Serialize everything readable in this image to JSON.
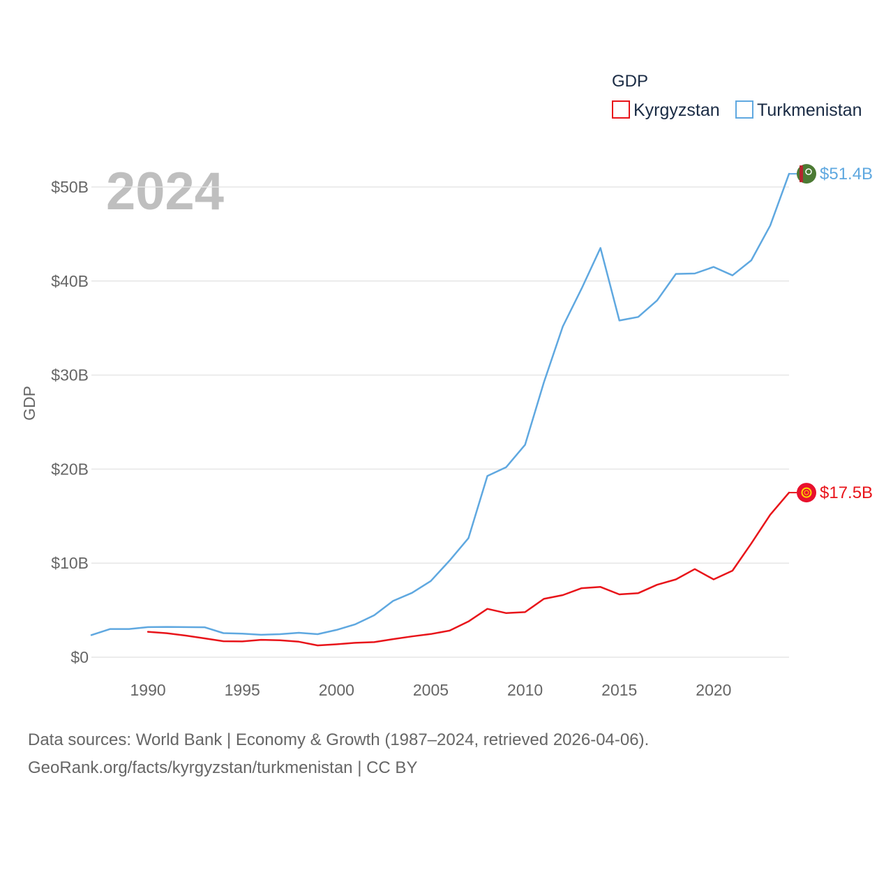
{
  "chart_data": {
    "type": "line",
    "title": "GDP",
    "year_watermark": "2024",
    "xlabel": "",
    "ylabel": "GDP",
    "xlim": [
      1987,
      2024
    ],
    "ylim": [
      0,
      50
    ],
    "x_ticks": [
      {
        "value": 1990,
        "label": "1990"
      },
      {
        "value": 1995,
        "label": "1995"
      },
      {
        "value": 2000,
        "label": "2000"
      },
      {
        "value": 2005,
        "label": "2005"
      },
      {
        "value": 2010,
        "label": "2010"
      },
      {
        "value": 2015,
        "label": "2015"
      },
      {
        "value": 2020,
        "label": "2020"
      }
    ],
    "y_ticks": [
      {
        "value": 0,
        "label": "$0"
      },
      {
        "value": 10,
        "label": "$10B"
      },
      {
        "value": 20,
        "label": "$20B"
      },
      {
        "value": 30,
        "label": "$30B"
      },
      {
        "value": 40,
        "label": "$40B"
      },
      {
        "value": 50,
        "label": "$50B"
      }
    ],
    "grid": true,
    "legend": {
      "title": "GDP",
      "position": "top-right"
    },
    "series": [
      {
        "name": "Kyrgyzstan",
        "color": "#e8141a",
        "end_label": "$17.5B",
        "flag": "kyrgyzstan-flag",
        "x": [
          1990,
          1991,
          1992,
          1993,
          1994,
          1995,
          1996,
          1997,
          1998,
          1999,
          2000,
          2001,
          2002,
          2003,
          2004,
          2005,
          2006,
          2007,
          2008,
          2009,
          2010,
          2011,
          2012,
          2013,
          2014,
          2015,
          2016,
          2017,
          2018,
          2019,
          2020,
          2021,
          2022,
          2023,
          2024
        ],
        "values": [
          2.7,
          2.55,
          2.3,
          2.0,
          1.7,
          1.68,
          1.85,
          1.8,
          1.65,
          1.25,
          1.37,
          1.53,
          1.6,
          1.92,
          2.21,
          2.46,
          2.83,
          3.8,
          5.14,
          4.69,
          4.79,
          6.2,
          6.6,
          7.34,
          7.47,
          6.68,
          6.81,
          7.7,
          8.27,
          9.37,
          8.27,
          9.2,
          12.1,
          15.15,
          17.5
        ]
      },
      {
        "name": "Turkmenistan",
        "color": "#5fa8e0",
        "end_label": "$51.4B",
        "flag": "turkmenistan-flag",
        "x": [
          1987,
          1988,
          1989,
          1990,
          1991,
          1992,
          1993,
          1994,
          1995,
          1996,
          1997,
          1998,
          1999,
          2000,
          2001,
          2002,
          2003,
          2004,
          2005,
          2006,
          2007,
          2008,
          2009,
          2010,
          2011,
          2012,
          2013,
          2014,
          2015,
          2016,
          2017,
          2018,
          2019,
          2020,
          2021,
          2022,
          2023,
          2024
        ],
        "values": [
          2.35,
          3.0,
          3.0,
          3.2,
          3.22,
          3.2,
          3.18,
          2.56,
          2.5,
          2.38,
          2.45,
          2.6,
          2.45,
          2.9,
          3.5,
          4.46,
          5.98,
          6.84,
          8.1,
          10.28,
          12.66,
          19.27,
          20.21,
          22.58,
          29.23,
          35.16,
          39.2,
          43.52,
          35.8,
          36.18,
          37.93,
          40.76,
          40.8,
          41.5,
          40.6,
          42.2,
          45.9,
          51.4
        ]
      }
    ],
    "source": {
      "line1": "Data sources: World Bank | Economy & Growth (1987–2024, retrieved 2026-04-06).",
      "line2": "GeoRank.org/facts/kyrgyzstan/turkmenistan | CC BY"
    }
  }
}
